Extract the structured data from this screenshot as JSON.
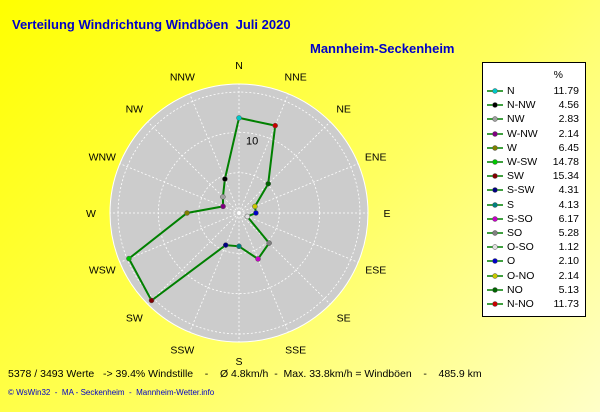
{
  "title": "Verteilung Windrichtung Windböen  Juli 2020",
  "station": "Mannheim-Seckenheim",
  "footer": "5378 / 3493 Werte   -> 39.4% Windstille    -    Ø 4.8km/h  -  Max. 33.8km/h = Windböen    -    485.9 km",
  "credits": "© WsWin32  -  MA - Seckenheim  -  Mannheim-Wetter.info",
  "chart_data": {
    "type": "radar",
    "ring_label": "10",
    "ring_values": [
      5,
      10,
      15
    ],
    "rmax": 16,
    "legend_header": "%",
    "directions": [
      "N",
      "NNE",
      "NE",
      "ENE",
      "E",
      "ESE",
      "SE",
      "SSE",
      "S",
      "SSW",
      "SW",
      "WSW",
      "W",
      "WNW",
      "NW",
      "NNW"
    ],
    "series": {
      "name": "",
      "points": [
        {
          "dir": "N",
          "legend": "N",
          "value": 11.79,
          "color": "#00c8c8"
        },
        {
          "dir": "NNE",
          "legend": "N-NO",
          "value": 11.73,
          "color": "#c80000"
        },
        {
          "dir": "NE",
          "legend": "NO",
          "value": 5.13,
          "color": "#006400"
        },
        {
          "dir": "ENE",
          "legend": "O-NO",
          "value": 2.14,
          "color": "#c8c800"
        },
        {
          "dir": "E",
          "legend": "O",
          "value": 2.1,
          "color": "#0000c8"
        },
        {
          "dir": "ESE",
          "legend": "O-SO",
          "value": 1.12,
          "color": "#e0e0e0"
        },
        {
          "dir": "SE",
          "legend": "SO",
          "value": 5.28,
          "color": "#808080"
        },
        {
          "dir": "SSE",
          "legend": "S-SO",
          "value": 6.17,
          "color": "#c800c8"
        },
        {
          "dir": "S",
          "legend": "S",
          "value": 4.13,
          "color": "#008080"
        },
        {
          "dir": "SSW",
          "legend": "S-SW",
          "value": 4.31,
          "color": "#000080"
        },
        {
          "dir": "SW",
          "legend": "SW",
          "value": 15.34,
          "color": "#800000"
        },
        {
          "dir": "WSW",
          "legend": "W-SW",
          "value": 14.78,
          "color": "#00c800"
        },
        {
          "dir": "W",
          "legend": "W",
          "value": 6.45,
          "color": "#808000"
        },
        {
          "dir": "WNW",
          "legend": "W-NW",
          "value": 2.14,
          "color": "#800080"
        },
        {
          "dir": "NW",
          "legend": "NW",
          "value": 2.83,
          "color": "#a0a0a0"
        },
        {
          "dir": "NNW",
          "legend": "N-NW",
          "value": 4.56,
          "color": "#000000"
        }
      ],
      "line_color": "#008000"
    },
    "legend_order": [
      "N",
      "N-NW",
      "NW",
      "W-NW",
      "W",
      "W-SW",
      "SW",
      "S-SW",
      "S",
      "S-SO",
      "SO",
      "O-SO",
      "O",
      "O-NO",
      "NO",
      "N-NO"
    ]
  }
}
